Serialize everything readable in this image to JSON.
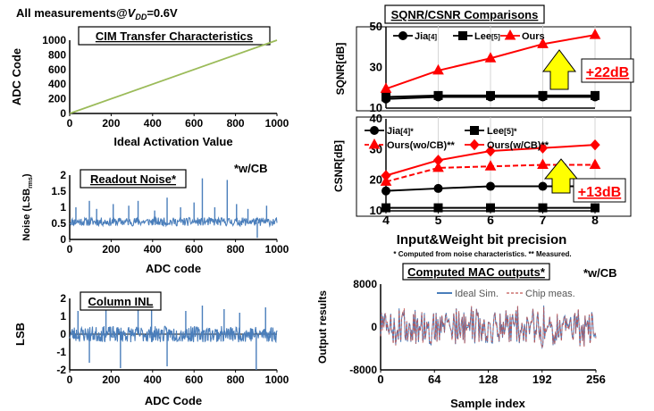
{
  "header": {
    "prefix": "All measurements@",
    "vdd_symbol": "V",
    "vdd_sub": "DD",
    "suffix": "=0.6V"
  },
  "colors": {
    "green": "#9bbb59",
    "blue": "#4a7ebb",
    "red": "#ff0000",
    "black": "#000000",
    "arrow_yellow": "#ffff00",
    "pink": "#d99694"
  },
  "chart_data": [
    {
      "id": "transfer",
      "type": "line",
      "title": "CIM Transfer Characteristics",
      "xlabel": "Ideal Activation Value",
      "ylabel": "ADC Code",
      "xlim": [
        0,
        1000
      ],
      "ylim": [
        0,
        1000
      ],
      "xticks": [
        "0",
        "200",
        "400",
        "600",
        "800",
        "1000"
      ],
      "yticks": [
        "0",
        "200",
        "400",
        "600",
        "800",
        "1000"
      ],
      "series": [
        {
          "x": [
            0,
            1000
          ],
          "y": [
            0,
            1000
          ]
        }
      ]
    },
    {
      "id": "noise",
      "type": "line",
      "title": "Readout Noise*",
      "annotation": "*w/CB",
      "xlabel": "ADC code",
      "ylabel": "Noise (LSB",
      "ylabel_sub": "rms",
      "ylabel_end": ")",
      "xlim": [
        0,
        1000
      ],
      "ylim": [
        0,
        2
      ],
      "xticks": [
        "0",
        "200",
        "400",
        "600",
        "800",
        "1000"
      ],
      "yticks": [
        "0",
        "0.5",
        "1",
        "1.5",
        "2"
      ],
      "trace": {
        "n": 400,
        "base": 0.55,
        "amp": 0.13,
        "seed": 11
      },
      "spikes": [
        [
          30,
          1.0
        ],
        [
          95,
          1.2
        ],
        [
          130,
          0.95
        ],
        [
          210,
          1.1
        ],
        [
          285,
          1.05
        ],
        [
          330,
          1.2
        ],
        [
          410,
          0.9
        ],
        [
          470,
          1.3
        ],
        [
          535,
          1.0
        ],
        [
          600,
          1.15
        ],
        [
          640,
          1.9
        ],
        [
          700,
          1.0
        ],
        [
          760,
          1.85
        ],
        [
          805,
          1.1
        ],
        [
          860,
          0.95
        ],
        [
          905,
          0.05
        ],
        [
          950,
          1.05
        ]
      ]
    },
    {
      "id": "inl",
      "type": "line",
      "title": "Column INL",
      "xlabel": "ADC Code",
      "ylabel": "LSB",
      "xlim": [
        0,
        1000
      ],
      "ylim": [
        -2,
        2
      ],
      "xticks": [
        "0",
        "200",
        "400",
        "600",
        "800",
        "1000"
      ],
      "yticks": [
        "-2",
        "-1",
        "0",
        "1",
        "2"
      ],
      "trace": {
        "n": 400,
        "base": 0.0,
        "amp": 0.45,
        "seed": 23
      },
      "spikes": [
        [
          40,
          1.3
        ],
        [
          95,
          -1.6
        ],
        [
          175,
          1.4
        ],
        [
          245,
          -1.9
        ],
        [
          330,
          1.6
        ],
        [
          395,
          1.5
        ],
        [
          470,
          -1.8
        ],
        [
          560,
          1.3
        ],
        [
          640,
          1.6
        ],
        [
          745,
          1.4
        ],
        [
          820,
          1.2
        ],
        [
          900,
          -2.0
        ],
        [
          945,
          1.5
        ]
      ]
    },
    {
      "id": "sqnr",
      "type": "line",
      "title": "SQNR/CSNR Comparisons",
      "ylabel": "SQNR[dB]",
      "xlim": [
        4,
        8
      ],
      "ylim": [
        10,
        50
      ],
      "yticks": [
        "10",
        "30",
        "50"
      ],
      "series": [
        {
          "name": "Jia",
          "ref": "[4]",
          "marker": "circle",
          "color": "#000000",
          "x": [
            4,
            5,
            6,
            7,
            8
          ],
          "y": [
            14.5,
            15.5,
            15.5,
            15.5,
            15.5
          ]
        },
        {
          "name": "Lee",
          "ref": "[5]",
          "marker": "square",
          "color": "#000000",
          "x": [
            4,
            5,
            6,
            7,
            8
          ],
          "y": [
            15.5,
            16.2,
            16.2,
            16.2,
            16.2
          ]
        },
        {
          "name": "Ours",
          "ref": "",
          "marker": "triangle",
          "color": "#ff0000",
          "x": [
            4,
            5,
            6,
            7,
            8
          ],
          "y": [
            19.5,
            28.5,
            34.5,
            41.5,
            46
          ]
        }
      ],
      "callout": "+22dB"
    },
    {
      "id": "csnr",
      "type": "line",
      "ylabel": "CSNR[dB]",
      "xlabel": "Input&Weight bit precision",
      "xlim": [
        4,
        8
      ],
      "ylim": [
        10,
        40
      ],
      "xticks": [
        "4",
        "5",
        "6",
        "7",
        "8"
      ],
      "yticks": [
        "10",
        "20",
        "30",
        "40"
      ],
      "series": [
        {
          "name": "Jia",
          "ref": "[4]*",
          "marker": "circle",
          "color": "#000000",
          "dashed": false,
          "x": [
            4,
            5,
            6,
            7,
            8
          ],
          "y": [
            16.5,
            17.3,
            18,
            18,
            18
          ]
        },
        {
          "name": "Lee",
          "ref": "[5]*",
          "marker": "square",
          "color": "#000000",
          "dashed": false,
          "x": [
            4,
            5,
            6,
            7,
            8
          ],
          "y": [
            11,
            11,
            11,
            11,
            11
          ]
        },
        {
          "name": "Ours(wo/CB)**",
          "ref": "",
          "marker": "triangle",
          "color": "#ff0000",
          "dashed": true,
          "x": [
            4,
            5,
            6,
            7,
            8
          ],
          "y": [
            19.5,
            24,
            24.5,
            25,
            25
          ]
        },
        {
          "name": "Ours(w/CB)**",
          "ref": "",
          "marker": "diamond",
          "color": "#ff0000",
          "dashed": false,
          "x": [
            4,
            5,
            6,
            7,
            8
          ],
          "y": [
            21.5,
            26.5,
            29.5,
            30.5,
            31.5
          ]
        }
      ],
      "callout": "+13dB",
      "footnote": "* Computed from noise characteristics. ** Measured."
    },
    {
      "id": "mac",
      "type": "line",
      "title": "Computed MAC outputs*",
      "annotation": "*w/CB",
      "xlabel": "Sample index",
      "ylabel": "Output results",
      "xlim": [
        0,
        256
      ],
      "ylim": [
        -8000,
        8000
      ],
      "xticks": [
        "0",
        "64",
        "128",
        "192",
        "256"
      ],
      "yticks": [
        "-8000",
        "0",
        "8000"
      ],
      "legend": [
        "Ideal Sim.",
        "Chip meas."
      ],
      "trace": {
        "n": 256,
        "amp": 3500,
        "seed": 5
      }
    }
  ]
}
